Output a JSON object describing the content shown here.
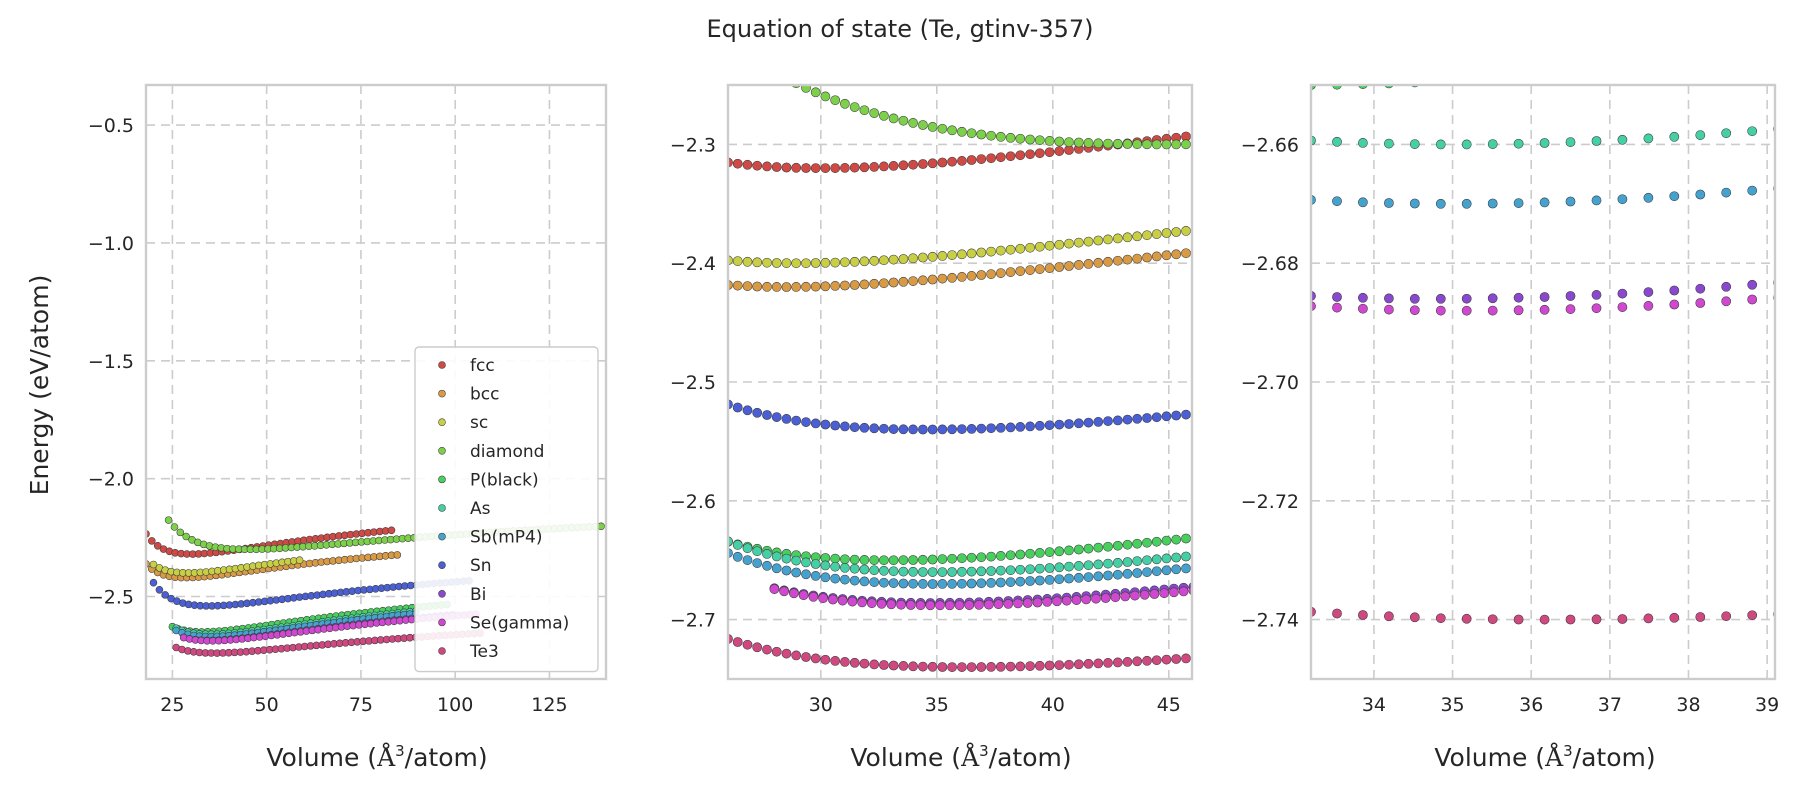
{
  "figure": {
    "title": "Equation of state (Te, gtinv-357)",
    "ylabel": "Energy (eV/atom)",
    "xlabel_pre": "Volume (",
    "xlabel_unit": "Å",
    "xlabel_sup": "3",
    "xlabel_post": "/atom)"
  },
  "chart_data": [
    {
      "type": "scatter",
      "panel": "full-range",
      "xlim": [
        18,
        140
      ],
      "ylim": [
        -2.85,
        -0.33
      ],
      "xticks": [
        25,
        50,
        75,
        100,
        125
      ],
      "yticks": [
        -2.5,
        -2.0,
        -1.5,
        -1.0,
        -0.5
      ],
      "ytick_labels": [
        "−2.5",
        "−2.0",
        "−1.5",
        "−1.0",
        "−0.5"
      ],
      "grid": true,
      "legend_position": "lower-right",
      "series": [
        {
          "name": "fcc",
          "color": "#cf4a45",
          "vmin": 18,
          "e0": -2.32,
          "v0": 30.0,
          "b": 0.014,
          "bp": 4.5,
          "vmax": 84
        },
        {
          "name": "bcc",
          "color": "#d99a45",
          "vmin": 18,
          "e0": -2.42,
          "v0": 28.5,
          "b": 0.013,
          "bp": 4.5,
          "vmax": 86
        },
        {
          "name": "sc",
          "color": "#c9cf45",
          "vmin": 20,
          "e0": -2.4,
          "v0": 29.0,
          "b": 0.013,
          "bp": 4.5,
          "vmax": 60
        },
        {
          "name": "diamond",
          "color": "#7dd04a",
          "vmin": 24,
          "e0": -2.3,
          "v0": 45.0,
          "b": 0.008,
          "bp": 4.5,
          "vmax": 140
        },
        {
          "name": "P(black)",
          "color": "#48cf5e",
          "vmin": 25,
          "e0": -2.65,
          "v0": 33.0,
          "b": 0.0135,
          "bp": 4.5,
          "vmax": 98
        },
        {
          "name": "As",
          "color": "#45cfa5",
          "vmin": 26,
          "e0": -2.66,
          "v0": 35.0,
          "b": 0.013,
          "bp": 4.5,
          "vmax": 90
        },
        {
          "name": "Sb(mP4)",
          "color": "#45a2cf",
          "vmin": 26,
          "e0": -2.67,
          "v0": 35.0,
          "b": 0.013,
          "bp": 4.5,
          "vmax": 90
        },
        {
          "name": "Sn",
          "color": "#4a5fd4",
          "vmin": 20,
          "e0": -2.54,
          "v0": 34.6,
          "b": 0.0117,
          "bp": 4.5,
          "vmax": 104
        },
        {
          "name": "Bi",
          "color": "#8a48cf",
          "vmin": 28,
          "e0": -2.686,
          "v0": 34.8,
          "b": 0.0125,
          "bp": 4.5,
          "vmax": 100
        },
        {
          "name": "Se(gamma)",
          "color": "#cf48cf",
          "vmin": 28,
          "e0": -2.688,
          "v0": 35.2,
          "b": 0.0122,
          "bp": 4.5,
          "vmax": 106
        },
        {
          "name": "Te3",
          "color": "#cf487f",
          "vmin": 26,
          "e0": -2.74,
          "v0": 36.2,
          "b": 0.009,
          "bp": 4.5,
          "vmax": 108
        }
      ]
    },
    {
      "type": "scatter",
      "panel": "zoom-minimum",
      "xlim": [
        26,
        46
      ],
      "ylim": [
        -2.75,
        -2.25
      ],
      "xticks": [
        30,
        35,
        40,
        45
      ],
      "yticks": [
        -2.7,
        -2.6,
        -2.5,
        -2.4,
        -2.3
      ],
      "ytick_labels": [
        "−2.7",
        "−2.6",
        "−2.5",
        "−2.4",
        "−2.3"
      ],
      "grid": true
    },
    {
      "type": "scatter",
      "panel": "zoom-lowest",
      "xlim": [
        33.2,
        39.1
      ],
      "ylim": [
        -2.75,
        -2.65
      ],
      "xticks": [
        34,
        35,
        36,
        37,
        38,
        39
      ],
      "yticks": [
        -2.74,
        -2.72,
        -2.7,
        -2.68,
        -2.66
      ],
      "ytick_labels": [
        "−2.74",
        "−2.72",
        "−2.70",
        "−2.68",
        "−2.66"
      ],
      "grid": true
    }
  ]
}
